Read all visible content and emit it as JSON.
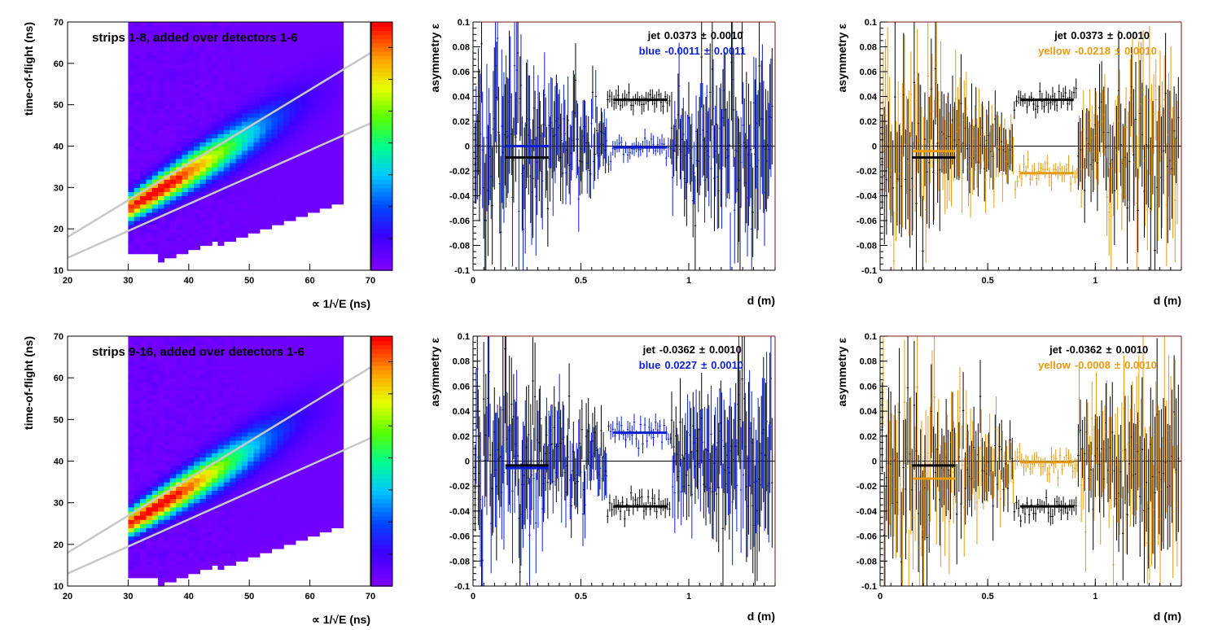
{
  "colors": {
    "frame": "#000000",
    "axis_right": "#7a1010",
    "blue": "#0a1fd6",
    "yellow": "#e89a10",
    "black": "#000000",
    "cut_line": "#c8c8c8"
  },
  "chart_data": [
    {
      "id": "p1",
      "type": "heatmap",
      "title": "strips 1-8, added over detectors 1-6",
      "xlabel": "∝ 1/√E (ns)",
      "ylabel": "time-of-flight (ns)",
      "xlim": [
        20,
        70
      ],
      "ylim": [
        10,
        70
      ],
      "xticks": [
        20,
        30,
        40,
        50,
        60,
        70
      ],
      "yticks": [
        10,
        20,
        30,
        40,
        50,
        60,
        70
      ],
      "colorscale": "rainbow",
      "peak": [
        34.5,
        26.5
      ],
      "cut_lines": [
        {
          "x": [
            20,
            70
          ],
          "y": [
            18.0,
            62.5
          ]
        },
        {
          "x": [
            20,
            70
          ],
          "y": [
            13.0,
            45.5
          ]
        }
      ],
      "grid": false
    },
    {
      "id": "p2",
      "type": "scatter",
      "xlabel": "d (m)",
      "ylabel": "asymmetry ε",
      "xlim": [
        0,
        1.4
      ],
      "ylim": [
        -0.1,
        0.1
      ],
      "xticks": [
        "0",
        "0.5",
        "1"
      ],
      "yticks": [
        "-0.1",
        "-0.08",
        "-0.06",
        "-0.04",
        "-0.02",
        "0",
        "0.02",
        "0.04",
        "0.06",
        "0.08",
        "0.1"
      ],
      "annotations": [
        {
          "label": "jet",
          "value": "0.0373",
          "plusminus": "±",
          "error": "0.0010",
          "color": "black"
        },
        {
          "label": "blue",
          "value": "-0.0011",
          "plusminus": "±",
          "error": "0.0011",
          "color": "blue"
        }
      ],
      "series": [
        {
          "color": "black",
          "fit_segments": [
            {
              "x": [
                0.15,
                0.35
              ],
              "y": -0.0092
            },
            {
              "x": [
                0.65,
                0.9
              ],
              "y": 0.0373
            }
          ]
        },
        {
          "color": "blue",
          "fit_segments": [
            {
              "x": [
                0.15,
                0.35
              ],
              "y": 0.0
            },
            {
              "x": [
                0.65,
                0.9
              ],
              "y": -0.0011
            }
          ]
        }
      ],
      "grid": false
    },
    {
      "id": "p3",
      "type": "scatter",
      "xlabel": "d (m)",
      "ylabel": "asymmetry ε",
      "xlim": [
        0,
        1.4
      ],
      "ylim": [
        -0.1,
        0.1
      ],
      "xticks": [
        "0",
        "0.5",
        "1"
      ],
      "yticks": [
        "-0.1",
        "-0.08",
        "-0.06",
        "-0.04",
        "-0.02",
        "0",
        "0.02",
        "0.04",
        "0.06",
        "0.08",
        "0.1"
      ],
      "annotations": [
        {
          "label": "jet",
          "value": "0.0373",
          "plusminus": "±",
          "error": "0.0010",
          "color": "black"
        },
        {
          "label": "yellow",
          "value": "-0.0218",
          "plusminus": "±",
          "error": "0.0010",
          "color": "yellow"
        }
      ],
      "series": [
        {
          "color": "black",
          "fit_segments": [
            {
              "x": [
                0.15,
                0.35
              ],
              "y": -0.0092
            },
            {
              "x": [
                0.65,
                0.9
              ],
              "y": 0.0373
            }
          ]
        },
        {
          "color": "yellow",
          "fit_segments": [
            {
              "x": [
                0.15,
                0.35
              ],
              "y": -0.004
            },
            {
              "x": [
                0.65,
                0.9
              ],
              "y": -0.0218
            }
          ]
        }
      ],
      "grid": false
    },
    {
      "id": "p4",
      "type": "heatmap",
      "title": "strips 9-16, added over detectors 1-6",
      "xlabel": "∝ 1/√E (ns)",
      "ylabel": "time-of-flight (ns)",
      "xlim": [
        20,
        70
      ],
      "ylim": [
        10,
        70
      ],
      "xticks": [
        20,
        30,
        40,
        50,
        60,
        70
      ],
      "yticks": [
        10,
        20,
        30,
        40,
        50,
        60,
        70
      ],
      "colorscale": "rainbow",
      "peak": [
        34.5,
        26.5
      ],
      "cut_lines": [
        {
          "x": [
            20,
            70
          ],
          "y": [
            18.0,
            62.5
          ]
        },
        {
          "x": [
            20,
            70
          ],
          "y": [
            13.0,
            45.5
          ]
        }
      ],
      "grid": false
    },
    {
      "id": "p5",
      "type": "scatter",
      "xlabel": "d (m)",
      "ylabel": "asymmetry ε",
      "xlim": [
        0,
        1.4
      ],
      "ylim": [
        -0.1,
        0.1
      ],
      "xticks": [
        "0",
        "0.5",
        "1"
      ],
      "yticks": [
        "-0.1",
        "-0.08",
        "-0.06",
        "-0.04",
        "-0.02",
        "0",
        "0.02",
        "0.04",
        "0.06",
        "0.08",
        "0.1"
      ],
      "annotations": [
        {
          "label": "jet",
          "value": "-0.0362",
          "plusminus": "±",
          "error": "0.0010",
          "color": "black"
        },
        {
          "label": "blue",
          "value": "0.0227",
          "plusminus": "±",
          "error": "0.0010",
          "color": "blue"
        }
      ],
      "series": [
        {
          "color": "black",
          "fit_segments": [
            {
              "x": [
                0.15,
                0.35
              ],
              "y": -0.0035
            },
            {
              "x": [
                0.65,
                0.9
              ],
              "y": -0.0362
            }
          ]
        },
        {
          "color": "blue",
          "fit_segments": [
            {
              "x": [
                0.15,
                0.35
              ],
              "y": -0.0055
            },
            {
              "x": [
                0.65,
                0.9
              ],
              "y": 0.0227
            }
          ]
        }
      ],
      "grid": false
    },
    {
      "id": "p6",
      "type": "scatter",
      "xlabel": "d (m)",
      "ylabel": "asymmetry ε",
      "xlim": [
        0,
        1.4
      ],
      "ylim": [
        -0.1,
        0.1
      ],
      "xticks": [
        "0",
        "0.5",
        "1"
      ],
      "yticks": [
        "-0.1",
        "-0.08",
        "-0.06",
        "-0.04",
        "-0.02",
        "0",
        "0.02",
        "0.04",
        "0.06",
        "0.08",
        "0.1"
      ],
      "annotations": [
        {
          "label": "jet",
          "value": "-0.0362",
          "plusminus": "±",
          "error": "0.0010",
          "color": "black"
        },
        {
          "label": "yellow",
          "value": "-0.0008",
          "plusminus": "±",
          "error": "0.0010",
          "color": "yellow"
        }
      ],
      "series": [
        {
          "color": "black",
          "fit_segments": [
            {
              "x": [
                0.15,
                0.35
              ],
              "y": -0.0035
            },
            {
              "x": [
                0.65,
                0.9
              ],
              "y": -0.0362
            }
          ]
        },
        {
          "color": "yellow",
          "fit_segments": [
            {
              "x": [
                0.15,
                0.35
              ],
              "y": -0.014
            },
            {
              "x": [
                0.65,
                0.9
              ],
              "y": -0.0008
            }
          ]
        }
      ],
      "grid": false
    }
  ]
}
